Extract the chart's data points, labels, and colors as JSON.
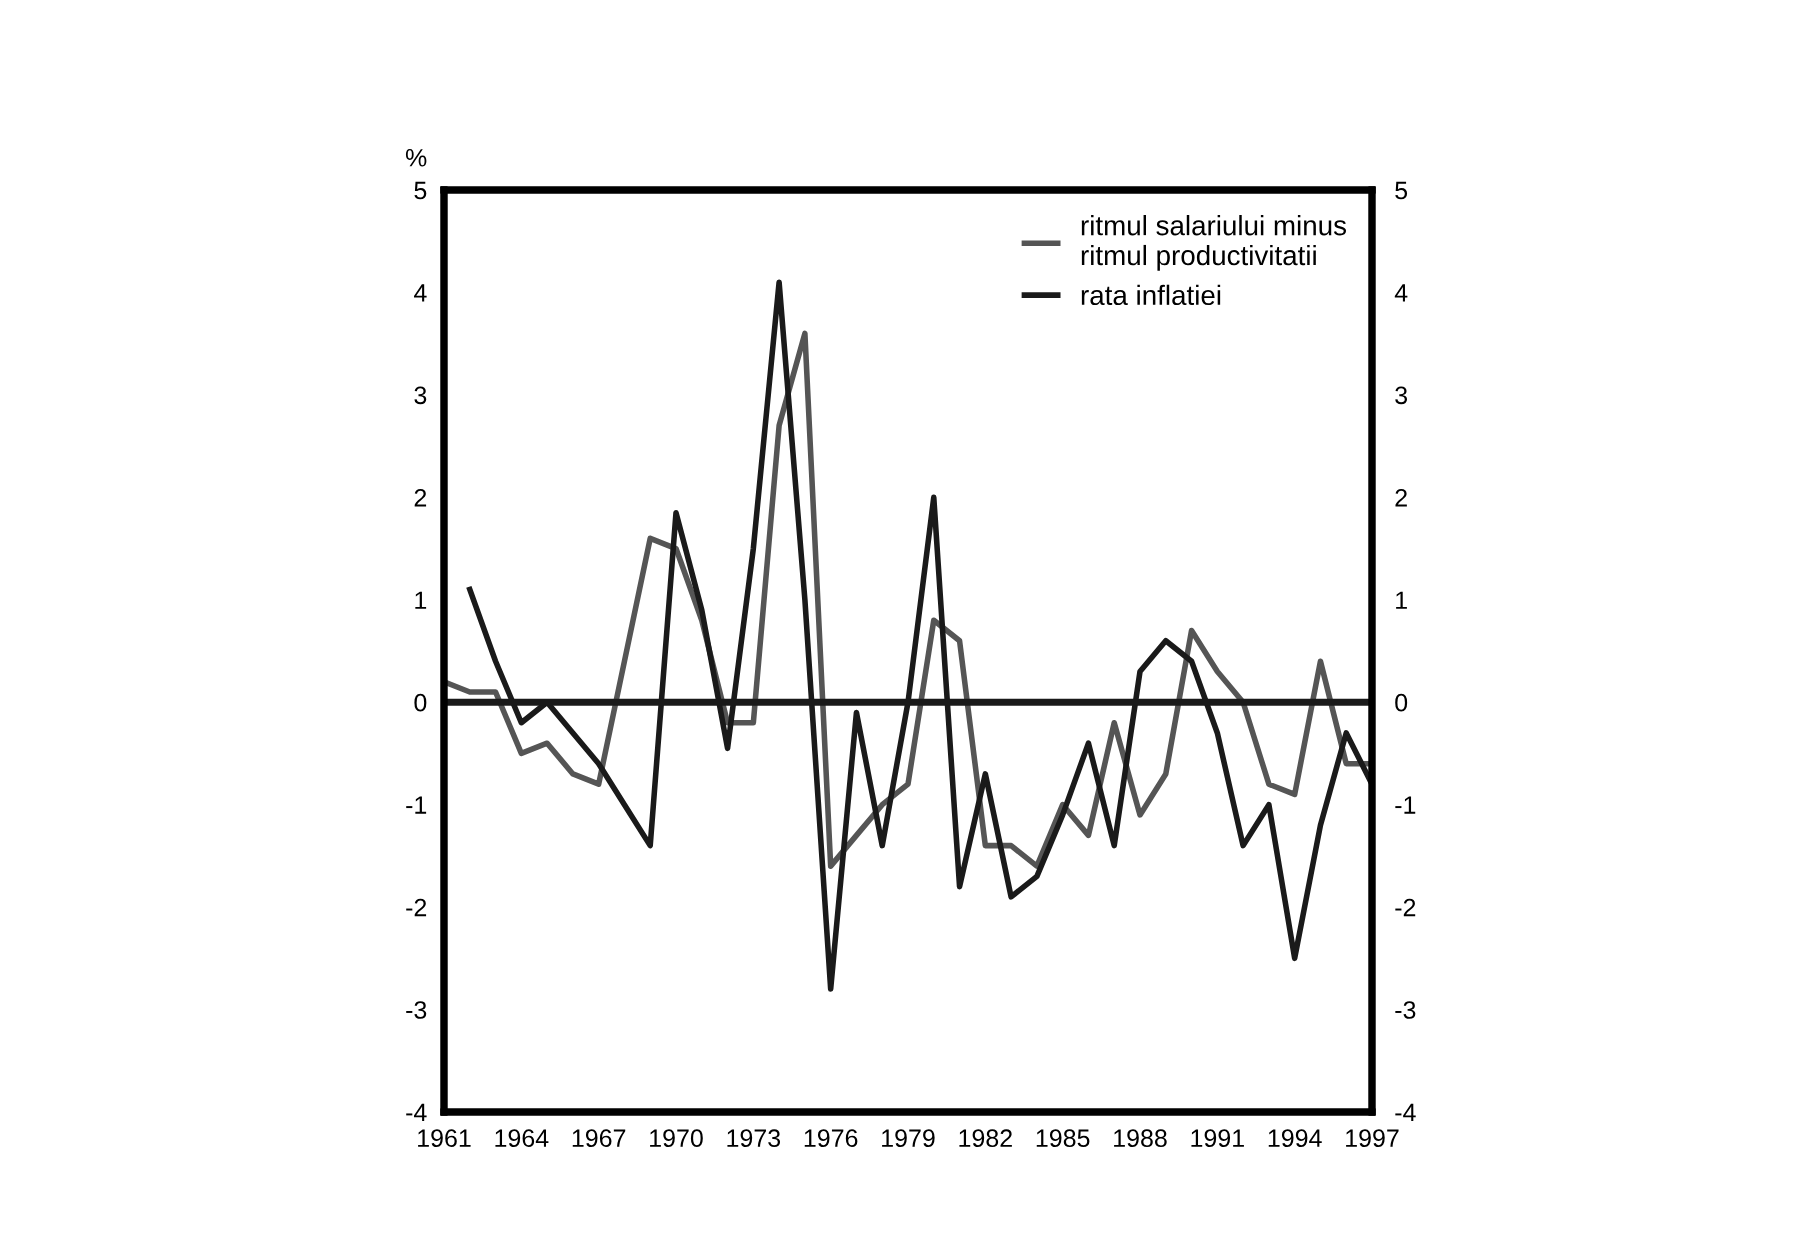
{
  "chart_data": {
    "type": "line",
    "ylabel": "%",
    "x": [
      1961,
      1962,
      1963,
      1964,
      1965,
      1966,
      1967,
      1968,
      1969,
      1970,
      1971,
      1972,
      1973,
      1974,
      1975,
      1976,
      1977,
      1978,
      1979,
      1980,
      1981,
      1982,
      1983,
      1984,
      1985,
      1986,
      1987,
      1988,
      1989,
      1990,
      1991,
      1992,
      1993,
      1994,
      1995,
      1996,
      1997
    ],
    "series": [
      {
        "name": "ritmul salariului minus\nritmul productivitatii",
        "color": "#555555",
        "values": [
          0.2,
          0.1,
          0.1,
          -0.5,
          -0.4,
          -0.7,
          -0.8,
          0.4,
          1.6,
          1.5,
          0.8,
          -0.2,
          -0.2,
          2.7,
          3.6,
          -1.6,
          -1.3,
          -1.0,
          -0.8,
          0.8,
          0.6,
          -1.4,
          -1.4,
          -1.6,
          -1.0,
          -1.3,
          -0.2,
          -1.1,
          -0.7,
          0.7,
          0.3,
          0.0,
          -0.8,
          -0.9,
          0.4,
          -0.6,
          -0.6
        ]
      },
      {
        "name": "rata inflatiei",
        "color": "#1a1a1a",
        "values": [
          null,
          1.1,
          0.4,
          -0.2,
          0.0,
          -0.3,
          -0.6,
          -1.0,
          -1.4,
          1.85,
          0.9,
          -0.45,
          1.5,
          4.1,
          1.0,
          -2.8,
          -0.1,
          -1.4,
          0.0,
          2.0,
          -1.8,
          -0.7,
          -1.9,
          -1.7,
          -1.1,
          -0.4,
          -1.4,
          0.3,
          0.6,
          0.4,
          -0.3,
          -1.4,
          -1.0,
          -2.5,
          -1.2,
          -0.3,
          -0.8
        ]
      }
    ],
    "xlim": [
      1961,
      1997
    ],
    "xticks": [
      1961,
      1964,
      1967,
      1970,
      1973,
      1976,
      1979,
      1982,
      1985,
      1988,
      1991,
      1994,
      1997
    ],
    "ylim": [
      -4,
      5
    ],
    "yticks": [
      -4,
      -3,
      -2,
      -1,
      0,
      1,
      2,
      3,
      4,
      5
    ],
    "y2lim": [
      -4,
      5
    ],
    "y2ticks": [
      -4,
      -3,
      -2,
      -1,
      0,
      1,
      2,
      3,
      4,
      5
    ],
    "ref_lines": [
      {
        "axis": "y",
        "value": 0,
        "label": null,
        "color": "#1a1a1a"
      }
    ],
    "legend": "top right",
    "grid": false,
    "marker": "none",
    "line_style": "solid"
  }
}
